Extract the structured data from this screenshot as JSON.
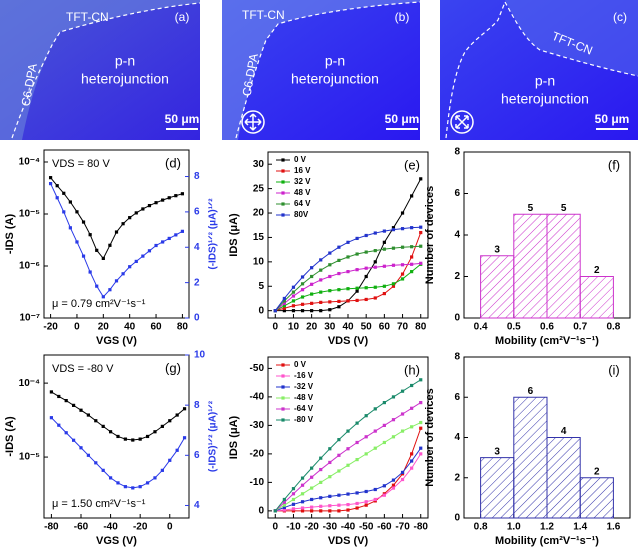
{
  "images": [
    {
      "label": "(a)",
      "regions": [
        "TFT-CN",
        "C6-DPA"
      ],
      "center": [
        "p-n",
        "heterojunction"
      ],
      "scale_bar": "50 μm"
    },
    {
      "label": "(b)",
      "regions": [
        "TFT-CN",
        "C6-DPA"
      ],
      "center": [
        "p-n",
        "heterojunction"
      ],
      "scale_bar": "50 μm"
    },
    {
      "label": "(c)",
      "regions": [
        "TFT-CN"
      ],
      "center": [
        "p-n",
        "heterojunction"
      ],
      "scale_bar": "50 μm"
    }
  ],
  "chart_data": [
    {
      "type": "line",
      "panel_label": "(d)",
      "xlabel": "VGS (V)",
      "ylabel": "-IDS (A)",
      "y2label": "(-IDS)¹ᐟ² (μA)¹ᐟ²",
      "annotations": [
        "VDS = 80 V",
        "μ = 0.79 cm²V⁻¹s⁻¹"
      ],
      "x": [
        -20,
        -15,
        -10,
        -5,
        0,
        5,
        10,
        15,
        20,
        25,
        30,
        35,
        40,
        45,
        50,
        55,
        60,
        65,
        70,
        75,
        80
      ],
      "xlim": [
        -25,
        85
      ],
      "xticks": [
        -20,
        0,
        20,
        40,
        60,
        80
      ],
      "yscale": "log",
      "ylim": [
        1e-07,
        0.00017
      ],
      "yticks": [
        {
          "value": 1e-07,
          "label": "10⁻⁷"
        },
        {
          "value": 1e-06,
          "label": "10⁻⁶"
        },
        {
          "value": 1e-05,
          "label": "10⁻⁵"
        },
        {
          "value": 0.0001,
          "label": "10⁻⁴"
        }
      ],
      "y2lim": [
        0,
        9.5
      ],
      "y2ticks": [
        0,
        2,
        4,
        6,
        8
      ],
      "series": [
        {
          "color": "#000000",
          "values": [
            5e-05,
            3.5e-05,
            2.5e-05,
            1.7e-05,
            1.1e-05,
            7e-06,
            4e-06,
            2e-06,
            1.4e-06,
            2.5e-06,
            4.5e-06,
            6.5e-06,
            8.5e-06,
            1.05e-05,
            1.25e-05,
            1.45e-05,
            1.65e-05,
            1.85e-05,
            2.05e-05,
            2.25e-05,
            2.45e-05
          ]
        },
        {
          "color": "#2a3ae8",
          "axis": "y2",
          "values": [
            7.6,
            6.8,
            6.0,
            5.1,
            4.3,
            3.5,
            2.6,
            1.8,
            1.2,
            1.6,
            2.1,
            2.5,
            2.9,
            3.2,
            3.5,
            3.8,
            4.1,
            4.3,
            4.5,
            4.7,
            4.9
          ]
        }
      ]
    },
    {
      "type": "line",
      "panel_label": "(e)",
      "xlabel": "VDS (V)",
      "ylabel": "IDS (μA)",
      "legend": "upper left",
      "x": [
        0,
        5,
        10,
        15,
        20,
        25,
        30,
        35,
        40,
        45,
        50,
        55,
        60,
        65,
        70,
        75,
        80
      ],
      "xlim": [
        -4,
        84
      ],
      "xticks": [
        0,
        10,
        20,
        30,
        40,
        50,
        60,
        70,
        80
      ],
      "ylim": [
        -1.5,
        32.5
      ],
      "yticks": [
        0,
        5,
        10,
        15,
        20,
        25,
        30
      ],
      "series": [
        {
          "name": "0 V",
          "color": "#000000",
          "values": [
            0,
            0,
            0,
            0,
            0,
            0,
            0.2,
            0.8,
            2,
            4,
            7,
            10,
            14,
            17,
            20,
            23.5,
            27
          ]
        },
        {
          "name": "16 V",
          "color": "#e01010",
          "values": [
            0,
            0.5,
            1,
            1.3,
            1.5,
            1.7,
            1.8,
            1.9,
            2,
            2.1,
            2.3,
            2.6,
            3.5,
            5,
            7.5,
            11,
            16
          ]
        },
        {
          "name": "32 V",
          "color": "#10b010",
          "values": [
            0,
            1,
            2,
            2.8,
            3.4,
            3.8,
            4.1,
            4.3,
            4.5,
            4.6,
            4.7,
            4.8,
            5,
            5.5,
            6.5,
            8,
            9.5
          ]
        },
        {
          "name": "48 V",
          "color": "#cc22cc",
          "values": [
            0,
            1.5,
            3,
            4.3,
            5.4,
            6.3,
            7,
            7.6,
            8,
            8.4,
            8.7,
            8.9,
            9.1,
            9.3,
            9.4,
            9.5,
            9.7
          ]
        },
        {
          "name": "64 V",
          "color": "#2f8f2f",
          "values": [
            0,
            2,
            3.8,
            5.5,
            7,
            8.3,
            9.4,
            10.3,
            11,
            11.6,
            12,
            12.3,
            12.6,
            12.8,
            13,
            13.1,
            13.2
          ]
        },
        {
          "name": "80V",
          "color": "#2233cc",
          "values": [
            0,
            2.5,
            4.8,
            6.9,
            8.8,
            10.4,
            11.8,
            13,
            14,
            14.8,
            15.4,
            15.9,
            16.3,
            16.6,
            16.8,
            17,
            17.1
          ]
        }
      ]
    },
    {
      "type": "histogram",
      "panel_label": "(f)",
      "xlabel": "Mobility (cm²V⁻¹s⁻¹)",
      "ylabel": "Number of devices",
      "bins": [
        0.4,
        0.5,
        0.6,
        0.7,
        0.8
      ],
      "values": [
        3,
        5,
        5,
        2
      ],
      "color": "#cc33cc",
      "xlim": [
        0.35,
        0.85
      ],
      "xticks": [
        0.4,
        0.5,
        0.6,
        0.7,
        0.8
      ],
      "ylim": [
        0,
        8
      ],
      "yticks": [
        0,
        2,
        4,
        6,
        8
      ]
    },
    {
      "type": "line",
      "panel_label": "(g)",
      "xlabel": "VGS (V)",
      "ylabel": "-IDS (A)",
      "y2label": "(-IDS)¹ᐟ² (μA)¹ᐟ²",
      "annotations": [
        "VDS = -80 V",
        "μ = 1.50 cm²V⁻¹s⁻¹"
      ],
      "x": [
        -80,
        -75,
        -70,
        -65,
        -60,
        -55,
        -50,
        -45,
        -40,
        -35,
        -30,
        -25,
        -20,
        -15,
        -10,
        -5,
        0,
        5,
        10
      ],
      "xlim": [
        -85,
        13
      ],
      "xticks": [
        -80,
        -60,
        -40,
        -20,
        0
      ],
      "yscale": "log",
      "ylim": [
        1.5e-06,
        0.00024
      ],
      "yticks": [
        {
          "value": 1e-05,
          "label": "10⁻⁵"
        },
        {
          "value": 0.0001,
          "label": "10⁻⁴"
        }
      ],
      "y2lim": [
        3.5,
        10
      ],
      "y2ticks": [
        4,
        6,
        8,
        10
      ],
      "series": [
        {
          "color": "#000000",
          "values": [
            7.6e-05,
            6.6e-05,
            5.8e-05,
            5e-05,
            4.3e-05,
            3.7e-05,
            3.1e-05,
            2.6e-05,
            2.2e-05,
            1.9e-05,
            1.75e-05,
            1.7e-05,
            1.75e-05,
            1.9e-05,
            2.2e-05,
            2.6e-05,
            3.1e-05,
            3.7e-05,
            4.5e-05
          ]
        },
        {
          "color": "#2a3ae8",
          "axis": "y2",
          "values": [
            7.5,
            7.2,
            6.9,
            6.6,
            6.3,
            6.0,
            5.7,
            5.4,
            5.1,
            4.9,
            4.75,
            4.7,
            4.75,
            4.9,
            5.1,
            5.4,
            5.8,
            6.2,
            6.7
          ]
        }
      ]
    },
    {
      "type": "line",
      "panel_label": "(h)",
      "xlabel": "VDS (V)",
      "ylabel": "IDS (μA)",
      "legend": "upper left",
      "x": [
        0,
        -5,
        -10,
        -15,
        -20,
        -25,
        -30,
        -35,
        -40,
        -45,
        -50,
        -55,
        -60,
        -65,
        -70,
        -75,
        -80
      ],
      "xlim": [
        4,
        -84
      ],
      "xticks": [
        0,
        -10,
        -20,
        -30,
        -40,
        -50,
        -60,
        -70,
        -80
      ],
      "ylim": [
        2.5,
        -54
      ],
      "yticks": [
        0,
        -10,
        -20,
        -30,
        -40,
        -50
      ],
      "series": [
        {
          "name": "0 V",
          "color": "#e01010",
          "values": [
            0,
            0,
            0,
            0,
            0,
            0,
            0,
            0,
            -0.3,
            -1,
            -2,
            -3.5,
            -6,
            -9,
            -13,
            -20,
            -29
          ]
        },
        {
          "name": "-16 V",
          "color": "#ff55cc",
          "values": [
            0,
            -0.3,
            -0.7,
            -1,
            -1.3,
            -1.6,
            -1.8,
            -2,
            -2.2,
            -2.6,
            -3.2,
            -4,
            -5.5,
            -8,
            -11,
            -15,
            -20
          ]
        },
        {
          "name": "-32 V",
          "color": "#2233cc",
          "values": [
            0,
            -1.2,
            -2.3,
            -3.2,
            -4,
            -4.6,
            -5.1,
            -5.5,
            -5.9,
            -6.3,
            -6.8,
            -7.5,
            -8.8,
            -10.8,
            -13.5,
            -17.5,
            -22
          ]
        },
        {
          "name": "-48 V",
          "color": "#88ee66",
          "values": [
            0,
            -2,
            -4,
            -6,
            -8,
            -10,
            -12,
            -14,
            -16,
            -18,
            -20,
            -22,
            -24,
            -26,
            -28,
            -29.5,
            -31
          ]
        },
        {
          "name": "-64 V",
          "color": "#cc33cc",
          "values": [
            0,
            -3,
            -6,
            -9,
            -11.8,
            -14.5,
            -17,
            -19.5,
            -21.8,
            -24,
            -26,
            -28,
            -30,
            -32,
            -34,
            -36,
            -38
          ]
        },
        {
          "name": "-80 V",
          "color": "#1a8a6a",
          "values": [
            0,
            -4,
            -7.8,
            -11.5,
            -15,
            -18.5,
            -21.8,
            -25,
            -28,
            -30.8,
            -33.4,
            -35.8,
            -38,
            -40,
            -42,
            -44,
            -46
          ]
        }
      ]
    },
    {
      "type": "histogram",
      "panel_label": "(i)",
      "xlabel": "Mobility (cm²V⁻¹s⁻¹)",
      "ylabel": "Number of devices",
      "bins": [
        0.8,
        1.0,
        1.2,
        1.4,
        1.6
      ],
      "values": [
        3,
        6,
        4,
        2
      ],
      "color": "#3333aa",
      "xlim": [
        0.7,
        1.7
      ],
      "xticks": [
        0.8,
        {
          "value": 1,
          "label": "1.0"
        },
        1.2,
        1.4,
        1.6
      ],
      "ylim": [
        0,
        8
      ],
      "yticks": [
        0,
        2,
        4,
        6,
        8
      ]
    }
  ]
}
